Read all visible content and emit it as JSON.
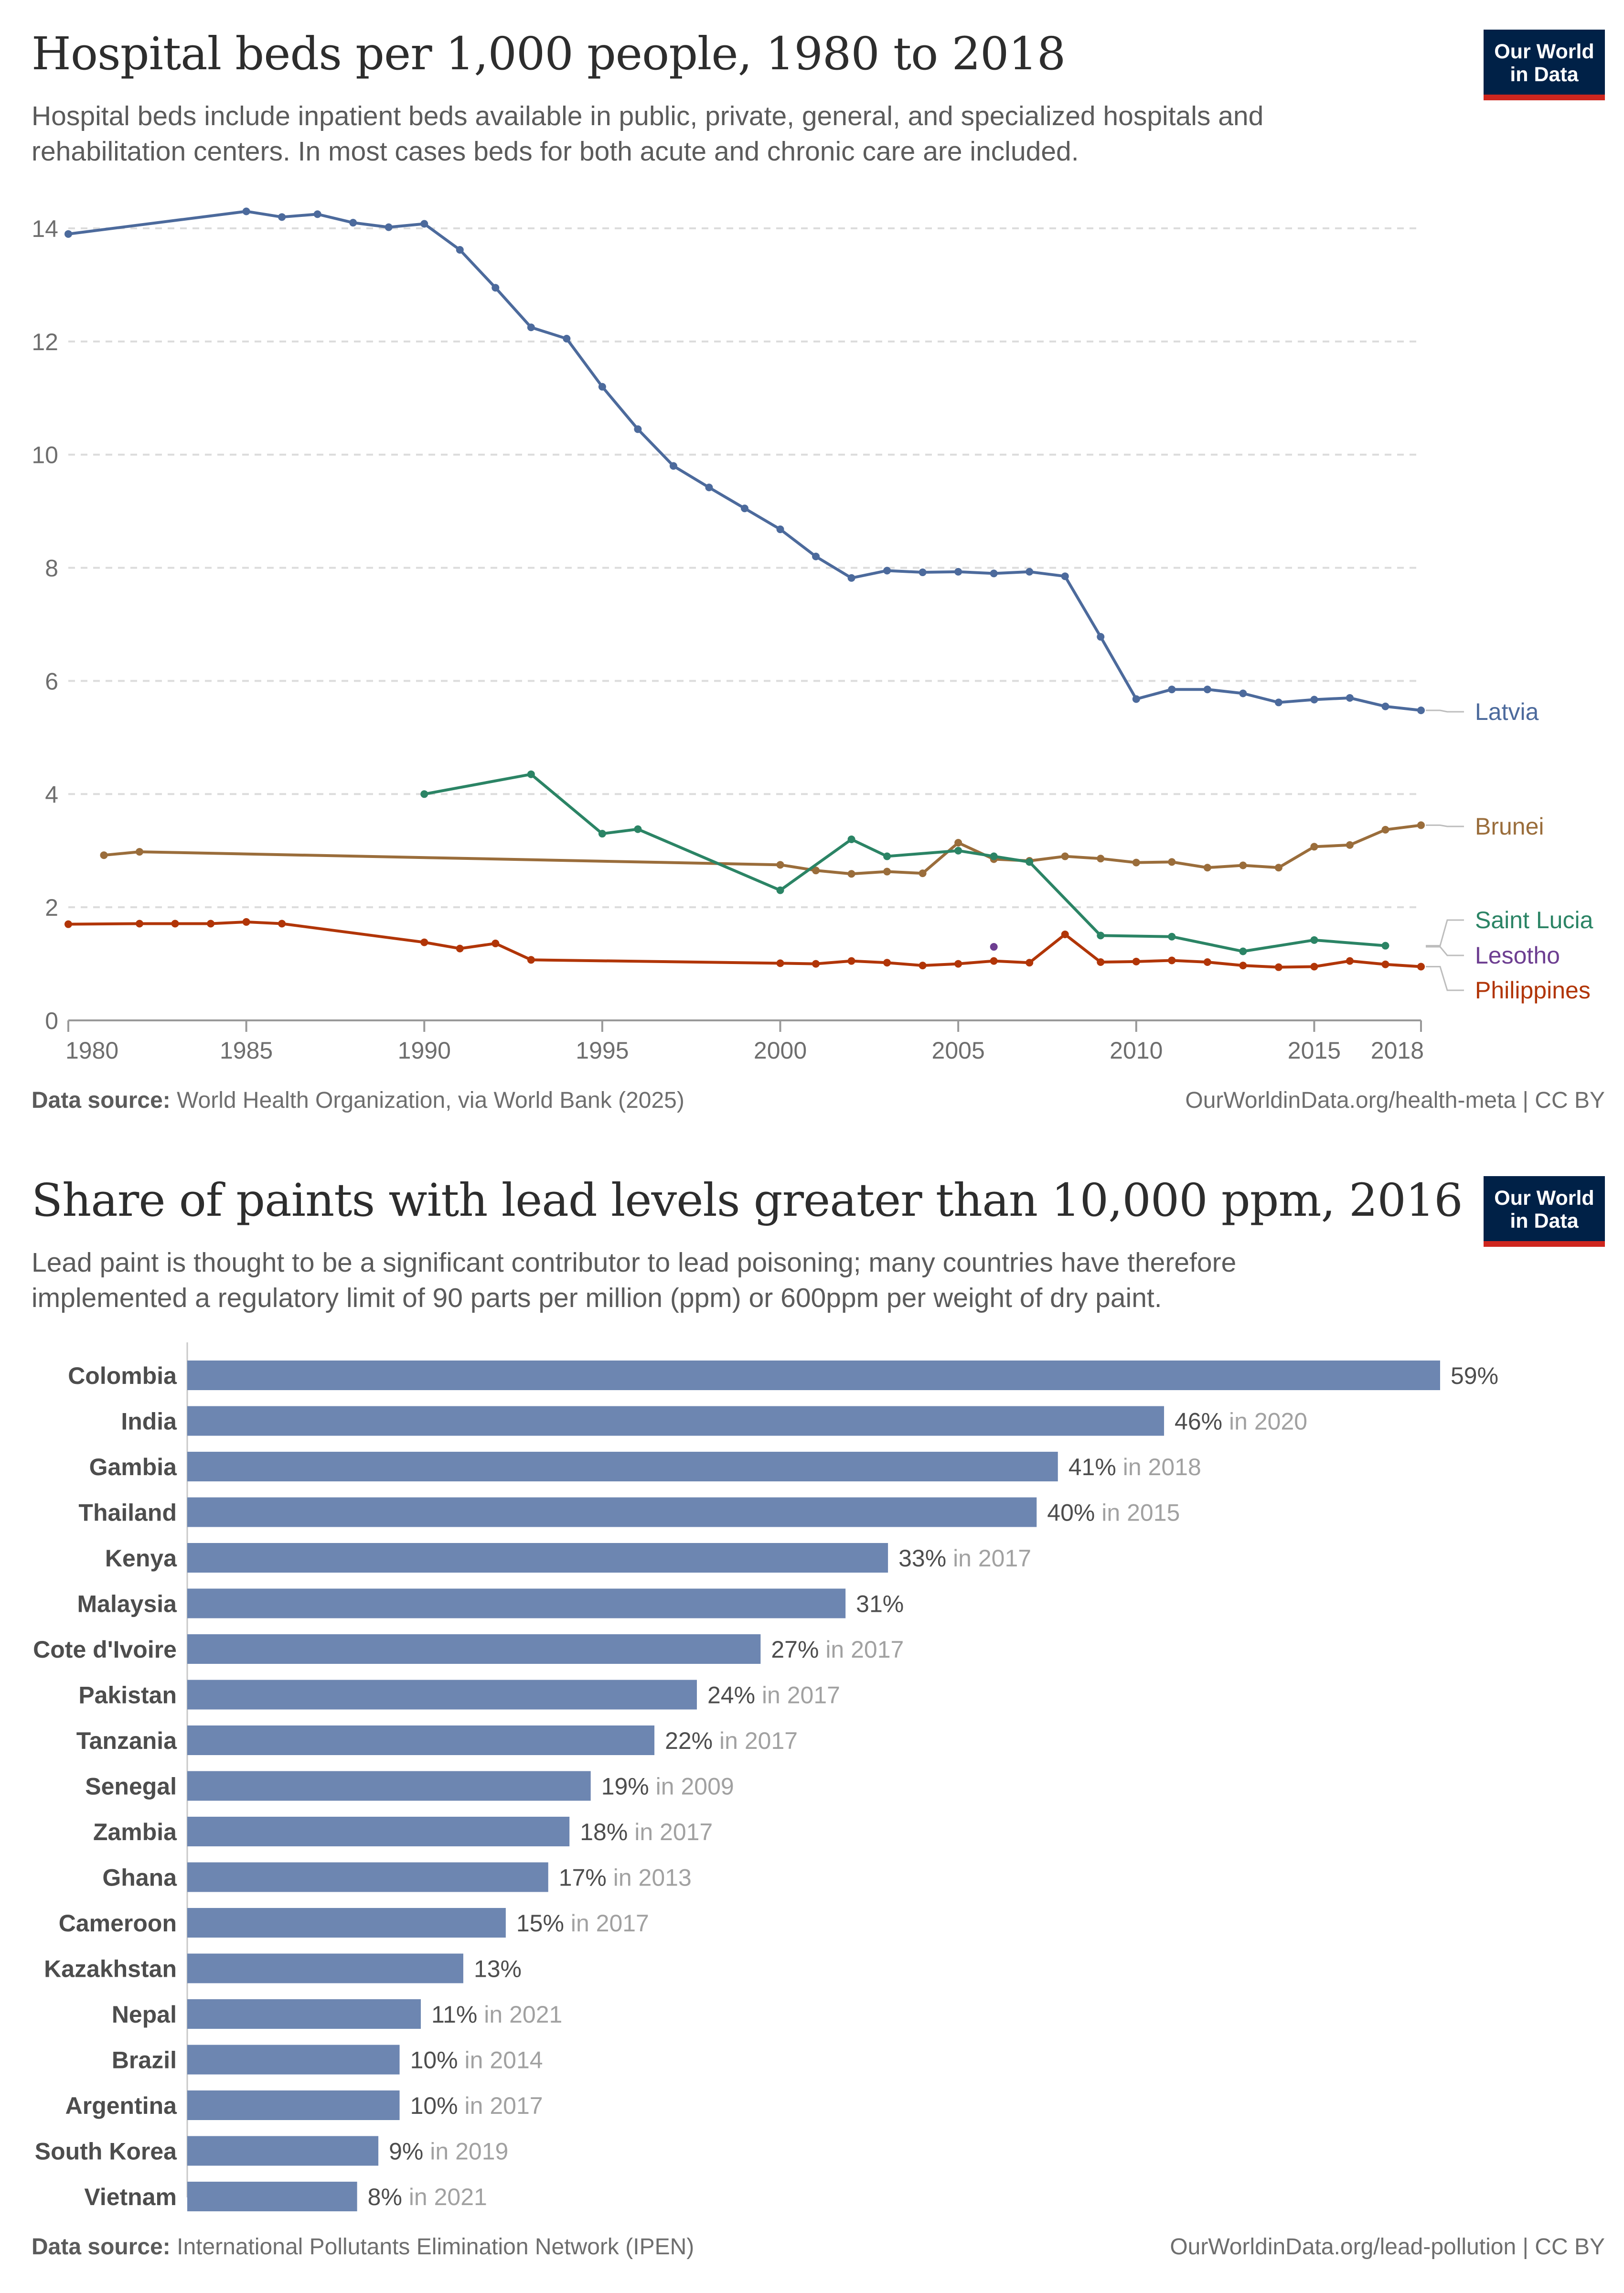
{
  "charts": [
    {
      "title": "Hospital beds per 1,000 people, 1980 to 2018",
      "subtitle": "Hospital beds include inpatient beds available in public, private, general, and specialized hospitals and rehabilitation centers. In most cases beds for both acute and chronic care are included.",
      "logo_line1": "Our World",
      "logo_line2": "in Data",
      "source_label": "Data source:",
      "source_text": "World Health Organization, via World Bank (2025)",
      "url": "OurWorldinData.org/health-meta | CC BY"
    },
    {
      "title": "Share of paints with lead levels greater than 10,000 ppm, 2016",
      "subtitle": "Lead paint is thought to be a significant contributor to lead poisoning; many countries have therefore implemented a regulatory limit of 90 parts per million (ppm) or 600ppm per weight of dry paint.",
      "logo_line1": "Our World",
      "logo_line2": "in Data",
      "source_label": "Data source:",
      "source_text": "International Pollutants Elimination Network (IPEN)",
      "url": "OurWorldinData.org/lead-pollution | CC BY"
    }
  ],
  "chart_data": [
    {
      "type": "line",
      "title": "Hospital beds per 1,000 people, 1980 to 2018",
      "xlabel": "",
      "ylabel": "",
      "xlim": [
        1980,
        2018
      ],
      "ylim": [
        0,
        14
      ],
      "x_ticks": [
        1980,
        1985,
        1990,
        1995,
        2000,
        2005,
        2010,
        2015,
        2018
      ],
      "y_ticks": [
        0,
        2,
        4,
        6,
        8,
        10,
        12,
        14
      ],
      "grid": "horizontal dashed",
      "legend": "inline labels right",
      "series": [
        {
          "name": "Latvia",
          "color": "#4c6a9c",
          "x": [
            1980,
            1985,
            1986,
            1987,
            1988,
            1989,
            1990,
            1991,
            1992,
            1993,
            1994,
            1995,
            1996,
            1997,
            1998,
            1999,
            2000,
            2001,
            2002,
            2003,
            2004,
            2005,
            2006,
            2007,
            2008,
            2009,
            2010,
            2011,
            2012,
            2013,
            2014,
            2015,
            2016,
            2017,
            2018
          ],
          "y": [
            13.9,
            14.3,
            14.2,
            14.25,
            14.1,
            14.02,
            14.08,
            13.62,
            12.95,
            12.25,
            12.05,
            11.2,
            10.45,
            9.8,
            9.42,
            9.05,
            8.68,
            8.2,
            7.82,
            7.95,
            7.92,
            7.93,
            7.9,
            7.93,
            7.85,
            6.78,
            5.68,
            5.85,
            5.85,
            5.78,
            5.62,
            5.67,
            5.7,
            5.55,
            5.48
          ]
        },
        {
          "name": "Brunei",
          "color": "#9a6d3b",
          "x": [
            1981,
            1982,
            2000,
            2001,
            2002,
            2003,
            2004,
            2005,
            2006,
            2007,
            2008,
            2009,
            2010,
            2011,
            2012,
            2013,
            2014,
            2015,
            2016,
            2017,
            2018
          ],
          "y": [
            2.92,
            2.98,
            2.75,
            2.65,
            2.59,
            2.63,
            2.6,
            3.14,
            2.85,
            2.82,
            2.9,
            2.86,
            2.79,
            2.8,
            2.7,
            2.74,
            2.7,
            3.07,
            3.1,
            3.37,
            3.45
          ]
        },
        {
          "name": "Saint Lucia",
          "color": "#2b8465",
          "x": [
            1990,
            1993,
            1995,
            1996,
            2000,
            2002,
            2003,
            2005,
            2006,
            2007,
            2009,
            2011,
            2013,
            2015,
            2017
          ],
          "y": [
            4.0,
            4.35,
            3.3,
            3.38,
            2.3,
            3.2,
            2.9,
            3.0,
            2.9,
            2.8,
            1.5,
            1.48,
            1.22,
            1.42,
            1.32
          ]
        },
        {
          "name": "Lesotho",
          "color": "#6d3e91",
          "x": [
            2006
          ],
          "y": [
            1.3
          ]
        },
        {
          "name": "Philippines",
          "color": "#b13507",
          "x": [
            1980,
            1982,
            1983,
            1984,
            1985,
            1986,
            1990,
            1991,
            1992,
            1993,
            2000,
            2001,
            2002,
            2003,
            2004,
            2005,
            2006,
            2007,
            2008,
            2009,
            2010,
            2011,
            2012,
            2013,
            2014,
            2015,
            2016,
            2017,
            2018
          ],
          "y": [
            1.7,
            1.71,
            1.71,
            1.71,
            1.74,
            1.71,
            1.38,
            1.27,
            1.36,
            1.07,
            1.01,
            1.0,
            1.05,
            1.02,
            0.97,
            1.0,
            1.05,
            1.02,
            1.52,
            1.03,
            1.04,
            1.06,
            1.03,
            0.97,
            0.94,
            0.95,
            1.05,
            0.99,
            0.95
          ]
        }
      ]
    },
    {
      "type": "bar",
      "orientation": "horizontal",
      "title": "Share of paints with lead levels greater than 10,000 ppm, 2016",
      "xlabel": "",
      "ylabel": "",
      "xlim": [
        0,
        59
      ],
      "unit": "%",
      "color": "#6d86b1",
      "categories": [
        "Colombia",
        "India",
        "Gambia",
        "Thailand",
        "Kenya",
        "Malaysia",
        "Cote d'Ivoire",
        "Pakistan",
        "Tanzania",
        "Senegal",
        "Zambia",
        "Ghana",
        "Cameroon",
        "Kazakhstan",
        "Nepal",
        "Brazil",
        "Argentina",
        "South Korea",
        "Vietnam"
      ],
      "values": [
        59,
        46,
        41,
        40,
        33,
        31,
        27,
        24,
        22,
        19,
        18,
        17,
        15,
        13,
        11,
        10,
        10,
        9,
        8
      ],
      "year_notes": [
        "",
        "in 2020",
        "in 2018",
        "in 2015",
        "in 2017",
        "",
        "in 2017",
        "in 2017",
        "in 2017",
        "in 2009",
        "in 2017",
        "in 2013",
        "in 2017",
        "",
        "in 2021",
        "in 2014",
        "in 2017",
        "in 2019",
        "in 2021"
      ]
    }
  ]
}
